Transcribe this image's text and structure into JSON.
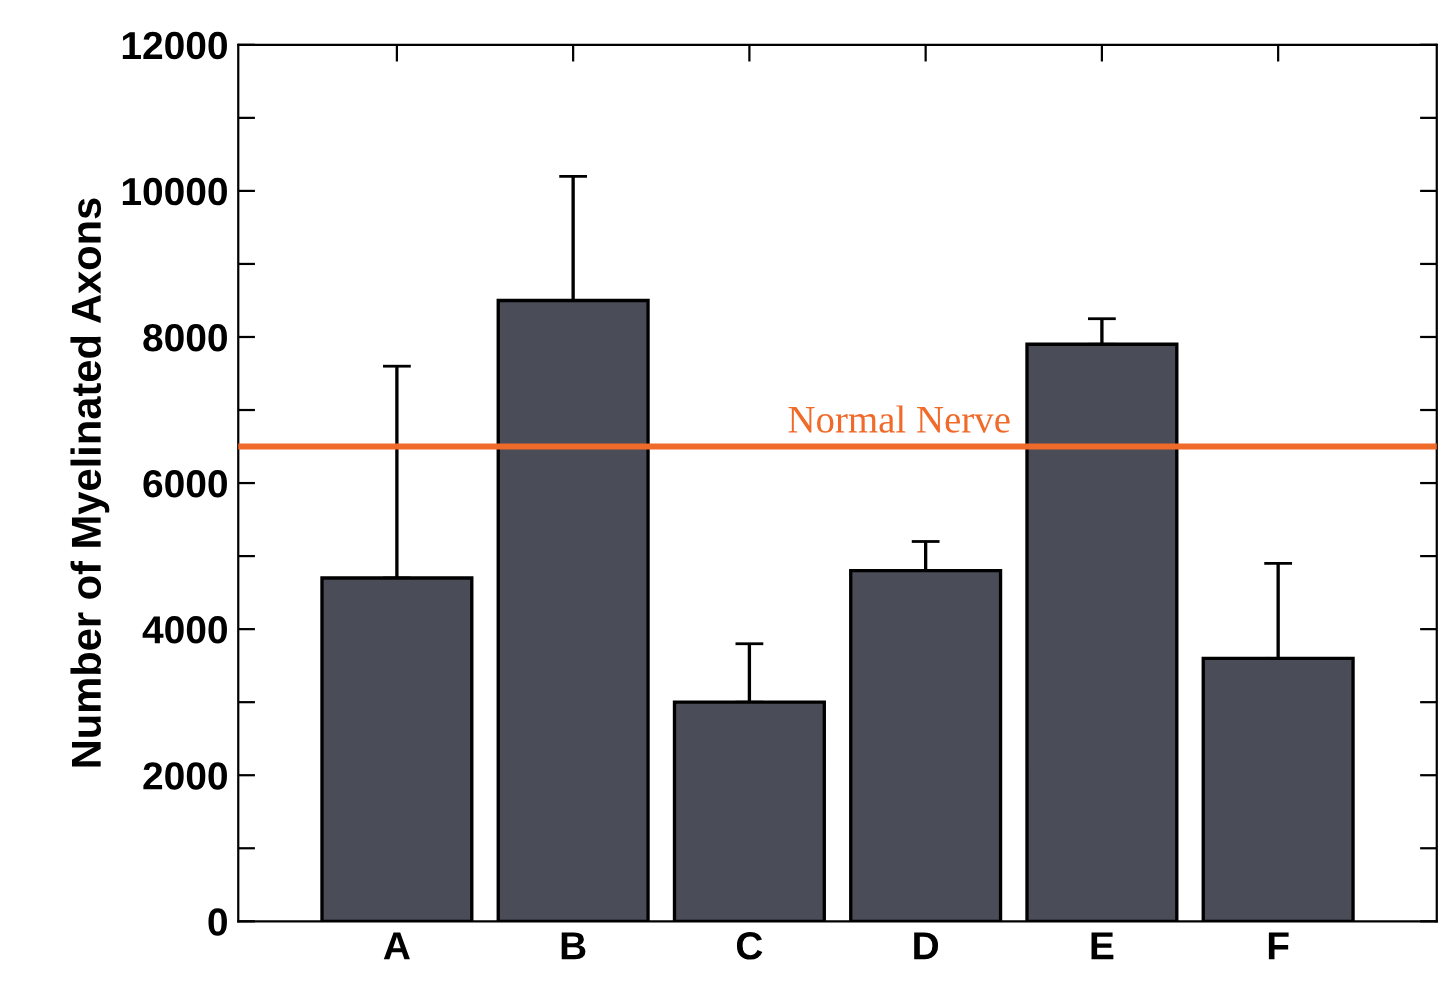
{
  "chart_data": {
    "type": "bar",
    "ylabel": "Number of Myelinated Axons",
    "categories": [
      "A",
      "B",
      "C",
      "D",
      "E",
      "F"
    ],
    "values": [
      4700,
      8500,
      3000,
      4800,
      7900,
      3600
    ],
    "errors": [
      [
        4700,
        7600
      ],
      [
        8500,
        10200
      ],
      [
        3000,
        3800
      ],
      [
        4800,
        5200
      ],
      [
        7900,
        8250
      ],
      [
        3600,
        4900
      ]
    ],
    "color": "#4a4d58",
    "ylim": [
      0,
      12000
    ],
    "yticks": [
      0,
      {
        "value": 1000,
        "label": null
      },
      2000,
      {
        "value": 3000,
        "label": null
      },
      4000,
      {
        "value": 5000,
        "label": null
      },
      6000,
      {
        "value": 7000,
        "label": null
      },
      8000,
      {
        "value": 9000,
        "label": null
      },
      10000,
      {
        "value": 11000,
        "label": null
      },
      12000
    ],
    "ref_lines": [
      {
        "axis": "y",
        "value": 6500,
        "label": "Normal Nerve",
        "color": "#f06a2a"
      }
    ],
    "grid": false,
    "legend": false
  }
}
